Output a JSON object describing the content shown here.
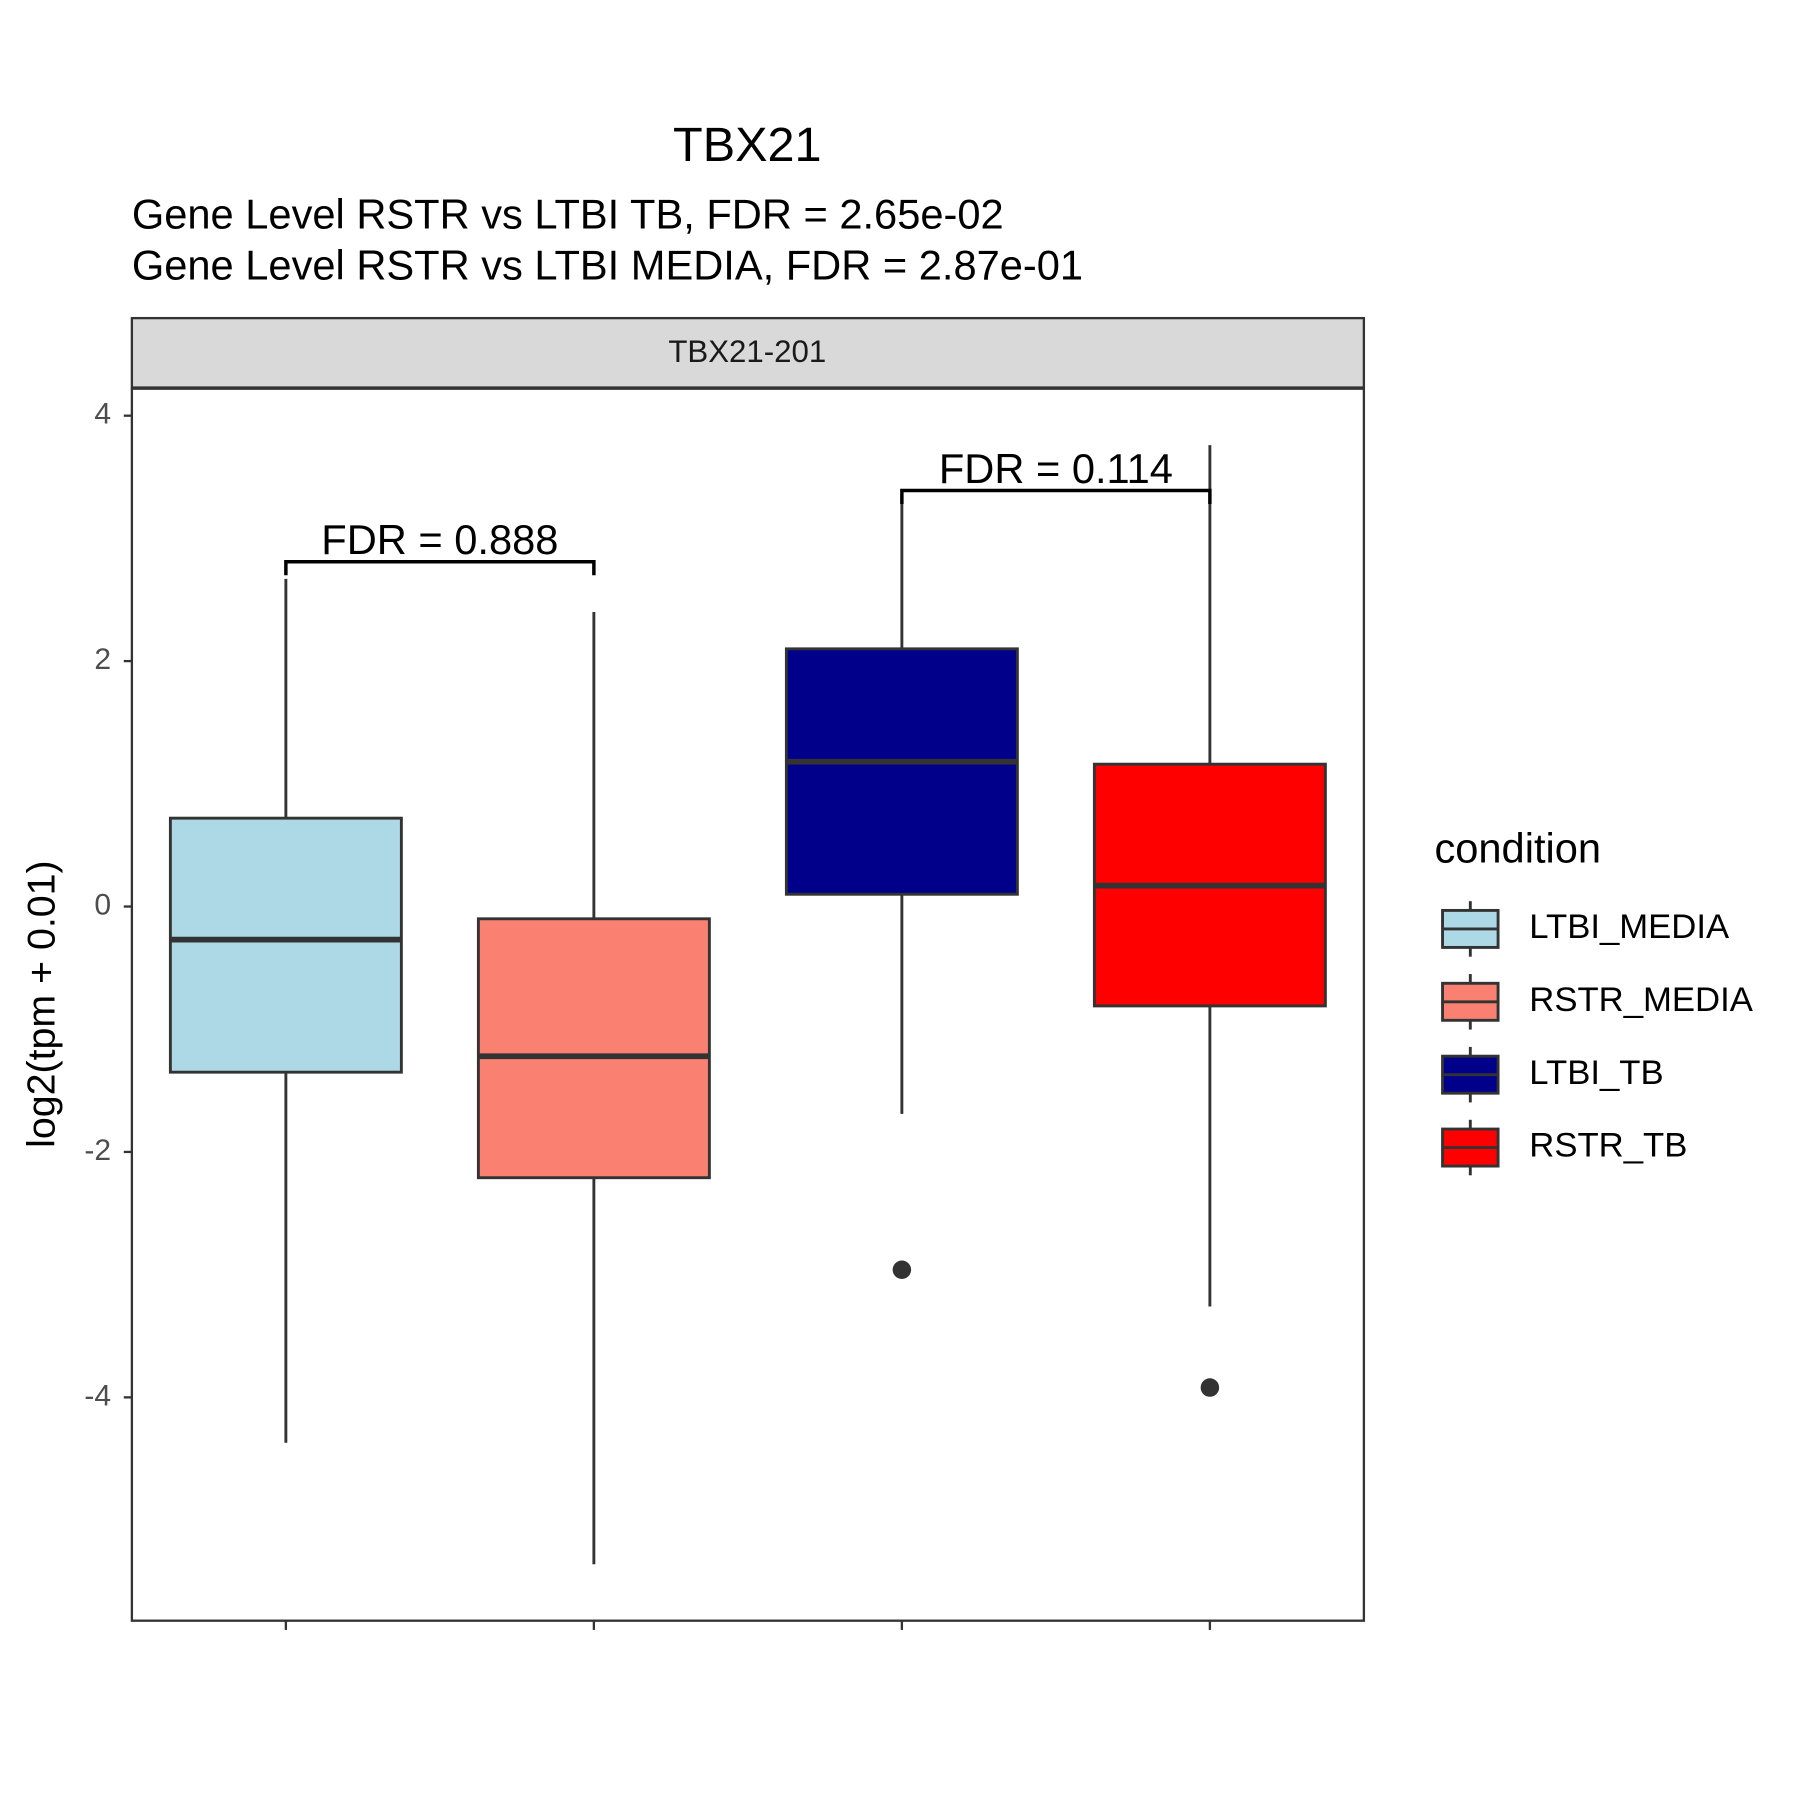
{
  "chart_data": {
    "type": "box",
    "title": "TBX21",
    "subtitle": [
      "Gene Level RSTR vs LTBI TB, FDR =  2.65e-02",
      "Gene Level RSTR vs LTBI MEDIA, FDR =  2.87e-01"
    ],
    "facet_label": "TBX21-201",
    "y_label": "log2(tpm + 0.01)",
    "legend_title": "condition",
    "categories": [
      "LTBI_MEDIA",
      "RSTR_MEDIA",
      "LTBI_TB",
      "RSTR_TB"
    ],
    "colors": [
      "#add8e6",
      "#fa8072",
      "#00008b",
      "#ff0000"
    ],
    "boxes": [
      {
        "whisker_low": -4.37,
        "q1": -1.35,
        "median": -0.27,
        "q3": 0.72,
        "whisker_high": 2.67,
        "outliers": []
      },
      {
        "whisker_low": -5.36,
        "q1": -2.21,
        "median": -1.22,
        "q3": -0.1,
        "whisker_high": 2.4,
        "outliers": []
      },
      {
        "whisker_low": -1.69,
        "q1": 0.1,
        "median": 1.18,
        "q3": 2.1,
        "whisker_high": 3.35,
        "outliers": [
          -2.96
        ]
      },
      {
        "whisker_low": -3.26,
        "q1": -0.81,
        "median": 0.17,
        "q3": 1.16,
        "whisker_high": 3.76,
        "outliers": [
          -3.92
        ]
      }
    ],
    "annotations": [
      {
        "label": "FDR =  0.888",
        "y": 2.81,
        "tip": 2.7,
        "between": [
          0,
          1
        ]
      },
      {
        "label": "FDR =  0.114",
        "y": 3.39,
        "tip": 3.28,
        "between": [
          2,
          3
        ]
      }
    ],
    "ylim": [
      -5.82,
      4.22
    ],
    "yticks": [
      -4,
      -2,
      0,
      2,
      4
    ]
  }
}
